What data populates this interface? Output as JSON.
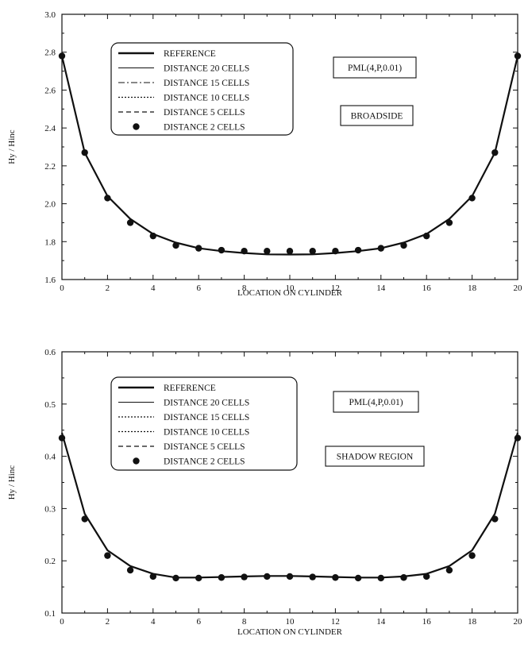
{
  "charts": [
    {
      "type": "line",
      "ylabel": "Hy / Hinc",
      "xlabel": "LOCATION ON CYLINDER",
      "xticks": [
        "0",
        "2",
        "4",
        "6",
        "8",
        "10",
        "12",
        "14",
        "16",
        "18",
        "20"
      ],
      "yticks": [
        "1.6",
        "1.8",
        "2.0",
        "2.2",
        "2.4",
        "2.6",
        "2.8",
        "3.0"
      ],
      "xlim": [
        0,
        20
      ],
      "ylim": [
        1.6,
        3.0
      ],
      "annotations": [
        "PML(4,P,0.01)",
        "BROADSIDE"
      ],
      "legend": {
        "placement": "top-left",
        "items": [
          {
            "label": "REFERENCE",
            "style": "thick"
          },
          {
            "label": "DISTANCE 20 CELLS",
            "style": "solid"
          },
          {
            "label": "DISTANCE 15 CELLS",
            "style": "dashdot"
          },
          {
            "label": "DISTANCE 10 CELLS",
            "style": "dotted"
          },
          {
            "label": "DISTANCE 5 CELLS",
            "style": "dashed"
          },
          {
            "label": "DISTANCE 2 CELLS",
            "style": "marker"
          }
        ]
      },
      "x": [
        0,
        1,
        2,
        3,
        4,
        5,
        6,
        7,
        8,
        9,
        10,
        11,
        12,
        13,
        14,
        15,
        16,
        17,
        18,
        19,
        20
      ],
      "curve": [
        2.78,
        2.27,
        2.04,
        1.92,
        1.84,
        1.795,
        1.765,
        1.75,
        1.74,
        1.733,
        1.732,
        1.733,
        1.74,
        1.75,
        1.765,
        1.795,
        1.84,
        1.92,
        2.04,
        2.27,
        2.78
      ],
      "points": [
        2.78,
        2.27,
        2.03,
        1.9,
        1.83,
        1.78,
        1.765,
        1.755,
        1.75,
        1.75,
        1.75,
        1.75,
        1.75,
        1.755,
        1.765,
        1.78,
        1.83,
        1.9,
        2.03,
        2.27,
        2.78
      ]
    },
    {
      "type": "line",
      "ylabel": "Hy / Hinc",
      "xlabel": "LOCATION ON CYLINDER",
      "xticks": [
        "0",
        "2",
        "4",
        "6",
        "8",
        "10",
        "12",
        "14",
        "16",
        "18",
        "20"
      ],
      "yticks": [
        "0.1",
        "0.2",
        "0.3",
        "0.4",
        "0.5",
        "0.6"
      ],
      "xlim": [
        0,
        20
      ],
      "ylim": [
        0.1,
        0.6
      ],
      "annotations": [
        "PML(4,P,0.01)",
        "SHADOW REGION"
      ],
      "legend": {
        "placement": "top-left",
        "items": [
          {
            "label": "REFERENCE",
            "style": "thick"
          },
          {
            "label": "DISTANCE 20 CELLS",
            "style": "solid"
          },
          {
            "label": "DISTANCE 15 CELLS",
            "style": "dotted"
          },
          {
            "label": "DISTANCE 10 CELLS",
            "style": "dotted"
          },
          {
            "label": "DISTANCE 5 CELLS",
            "style": "dashed"
          },
          {
            "label": "DISTANCE 2 CELLS",
            "style": "marker"
          }
        ]
      },
      "x": [
        0,
        1,
        2,
        3,
        4,
        5,
        6,
        7,
        8,
        9,
        10,
        11,
        12,
        13,
        14,
        15,
        16,
        17,
        18,
        19,
        20
      ],
      "curve": [
        0.445,
        0.29,
        0.22,
        0.19,
        0.175,
        0.168,
        0.168,
        0.169,
        0.17,
        0.171,
        0.171,
        0.17,
        0.169,
        0.168,
        0.168,
        0.17,
        0.175,
        0.19,
        0.22,
        0.29,
        0.445
      ],
      "points": [
        0.435,
        0.28,
        0.21,
        0.182,
        0.17,
        0.167,
        0.167,
        0.168,
        0.169,
        0.17,
        0.17,
        0.169,
        0.168,
        0.167,
        0.167,
        0.168,
        0.17,
        0.182,
        0.21,
        0.28,
        0.435
      ]
    }
  ]
}
